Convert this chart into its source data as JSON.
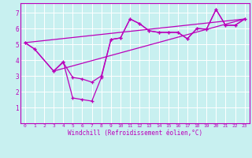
{
  "background_color": "#c8f0f0",
  "grid_color": "#ffffff",
  "line_color": "#bb00bb",
  "xlabel": "Windchill (Refroidissement éolien,°C)",
  "xlim": [
    -0.5,
    23.5
  ],
  "ylim": [
    0,
    7.6
  ],
  "xticks": [
    0,
    1,
    2,
    3,
    4,
    5,
    6,
    7,
    8,
    9,
    10,
    11,
    12,
    13,
    14,
    15,
    16,
    17,
    18,
    19,
    20,
    21,
    22,
    23
  ],
  "yticks": [
    1,
    2,
    3,
    4,
    5,
    6,
    7
  ],
  "line1_x": [
    0,
    1,
    3,
    4,
    5,
    6,
    7,
    8,
    9,
    10,
    11,
    12,
    13,
    14,
    15,
    16,
    17,
    18,
    19,
    20,
    21,
    22,
    23
  ],
  "line1_y": [
    5.1,
    4.7,
    3.3,
    3.9,
    1.6,
    1.5,
    1.4,
    2.9,
    5.3,
    5.4,
    6.6,
    6.3,
    5.85,
    5.75,
    5.75,
    5.75,
    5.35,
    6.0,
    5.95,
    7.2,
    6.2,
    6.2,
    6.6
  ],
  "line2_x": [
    0,
    1,
    3,
    4,
    5,
    6,
    7,
    8,
    9,
    10,
    11,
    12,
    13,
    14,
    15,
    16,
    17,
    18,
    19,
    20,
    21,
    22,
    23
  ],
  "line2_y": [
    5.1,
    4.7,
    3.3,
    3.85,
    2.9,
    2.8,
    2.6,
    3.0,
    5.3,
    5.4,
    6.6,
    6.3,
    5.85,
    5.75,
    5.75,
    5.75,
    5.35,
    6.0,
    5.95,
    7.2,
    6.2,
    6.2,
    6.6
  ],
  "line3_x": [
    3,
    23
  ],
  "line3_y": [
    3.3,
    6.6
  ],
  "line4_x": [
    0,
    23
  ],
  "line4_y": [
    5.1,
    6.6
  ],
  "xlabel_fontsize": 5.5,
  "tick_fontsize_x": 4.5,
  "tick_fontsize_y": 5.5
}
